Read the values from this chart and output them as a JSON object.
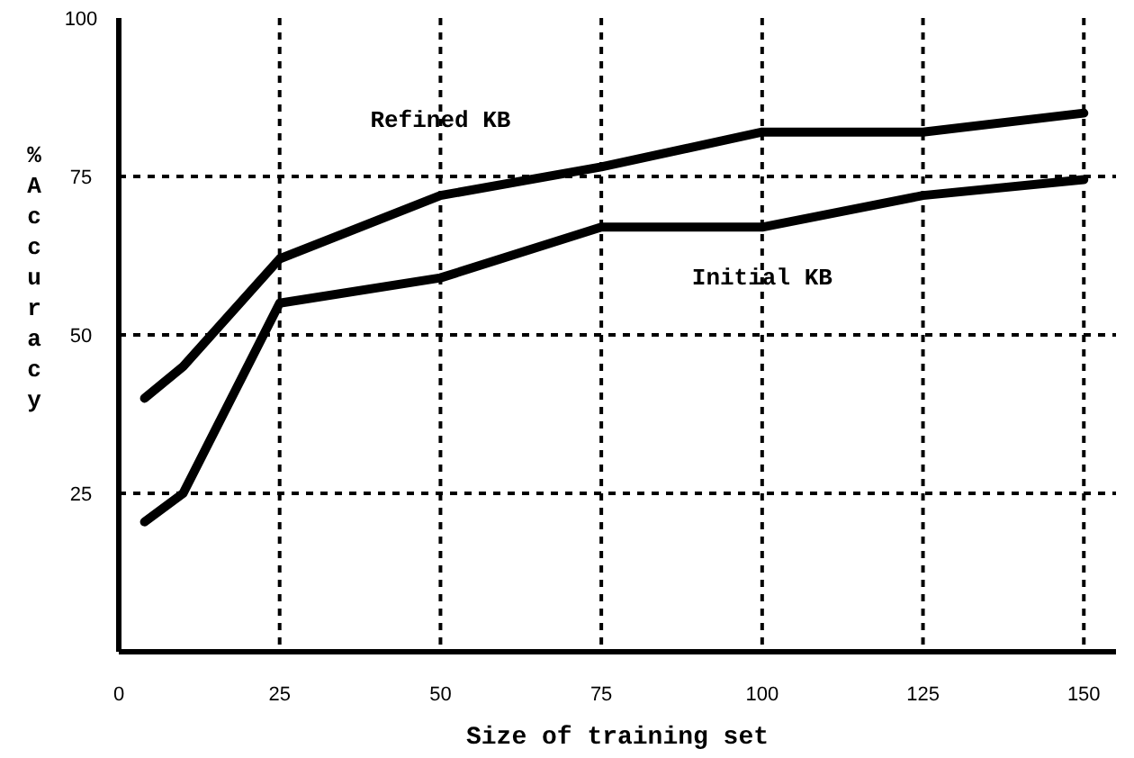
{
  "chart_data": {
    "type": "line",
    "xlabel": "Size of training set",
    "ylabel": "%Accuracy",
    "xlim": [
      0,
      155
    ],
    "xticks": [
      0,
      25,
      50,
      75,
      100,
      125,
      150
    ],
    "ylim": [
      0,
      100
    ],
    "yticks": [
      25,
      50,
      75,
      100
    ],
    "grid": true,
    "line_style": "solid",
    "marker": "none",
    "series": [
      {
        "name": "Refined KB",
        "color": "#000000",
        "x": [
          4,
          10,
          25,
          50,
          75,
          100,
          125,
          150
        ],
        "values": [
          40,
          45,
          62,
          72,
          76.5,
          82,
          82,
          85
        ]
      },
      {
        "name": "Initial KB",
        "color": "#000000",
        "x": [
          4,
          10,
          25,
          50,
          75,
          100,
          125,
          150
        ],
        "values": [
          20.5,
          25,
          55,
          59,
          67,
          67,
          72,
          74.5
        ]
      }
    ]
  }
}
